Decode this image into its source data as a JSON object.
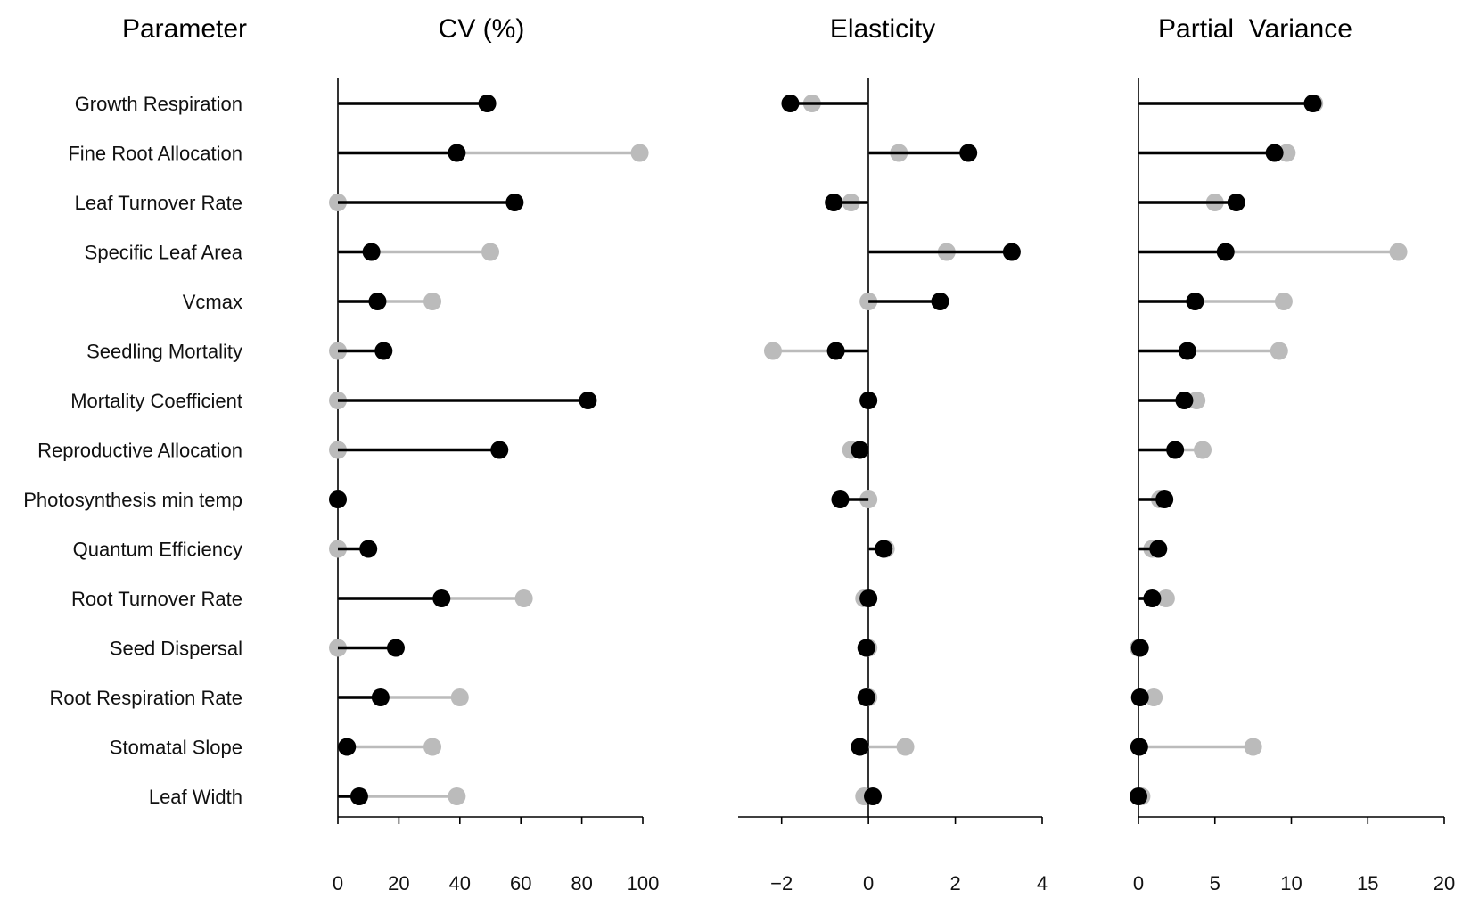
{
  "headers": {
    "parameter": "Parameter",
    "cv": "CV (%)",
    "elasticity": "Elasticity",
    "partial_variance": "Partial  Variance"
  },
  "parameters": [
    "Growth Respiration",
    "Fine Root Allocation",
    "Leaf Turnover Rate",
    "Specific Leaf Area",
    "Vcmax",
    "Seedling Mortality",
    "Mortality Coefficient",
    "Reproductive Allocation",
    "Photosynthesis min temp",
    "Quantum Efficiency",
    "Root Turnover Rate",
    "Seed Dispersal",
    "Root Respiration Rate",
    "Stomatal Slope",
    "Leaf Width"
  ],
  "colors": {
    "black": "#000000",
    "gray": "#bbbbbb"
  },
  "chart_data": [
    {
      "type": "lollipop",
      "title": "CV (%)",
      "xlim": [
        0,
        100
      ],
      "ticks": [
        0,
        20,
        40,
        60,
        80,
        100
      ],
      "tick_labels": [
        "0",
        "20",
        "40",
        "60",
        "80",
        "100"
      ],
      "series": [
        {
          "color": "gray",
          "values": [
            49,
            99,
            0,
            50,
            31,
            0,
            0,
            0,
            0,
            0,
            61,
            0,
            40,
            31,
            39
          ]
        },
        {
          "color": "black",
          "values": [
            49,
            39,
            58,
            11,
            13,
            15,
            82,
            53,
            0,
            10,
            34,
            19,
            14,
            3,
            7
          ]
        }
      ]
    },
    {
      "type": "lollipop",
      "title": "Elasticity",
      "xlim": [
        -3,
        4
      ],
      "ticks": [
        -2,
        0,
        2,
        4
      ],
      "tick_labels": [
        "−2",
        "0",
        "2",
        "4"
      ],
      "series": [
        {
          "color": "gray",
          "values": [
            -1.3,
            0.7,
            -0.4,
            1.8,
            0,
            -2.2,
            0,
            -0.4,
            0,
            0.4,
            -0.1,
            0,
            0,
            0.85,
            -0.1
          ]
        },
        {
          "color": "black",
          "values": [
            -1.8,
            2.3,
            -0.8,
            3.3,
            1.65,
            -0.75,
            0,
            -0.2,
            -0.65,
            0.35,
            0,
            -0.05,
            -0.05,
            -0.2,
            0.1
          ]
        }
      ]
    },
    {
      "type": "lollipop",
      "title": "Partial  Variance",
      "xlim": [
        0,
        20
      ],
      "ticks": [
        0,
        5,
        10,
        15,
        20
      ],
      "tick_labels": [
        "0",
        "5",
        "10",
        "15",
        "20"
      ],
      "series": [
        {
          "color": "gray",
          "values": [
            11.5,
            9.7,
            5,
            17,
            9.5,
            9.2,
            3.8,
            4.2,
            1.4,
            0.9,
            1.8,
            0,
            1,
            7.5,
            0.2
          ]
        },
        {
          "color": "black",
          "values": [
            11.4,
            8.9,
            6.4,
            5.7,
            3.7,
            3.2,
            3.0,
            2.4,
            1.7,
            1.3,
            0.9,
            0.1,
            0.1,
            0.05,
            0
          ]
        }
      ]
    }
  ]
}
